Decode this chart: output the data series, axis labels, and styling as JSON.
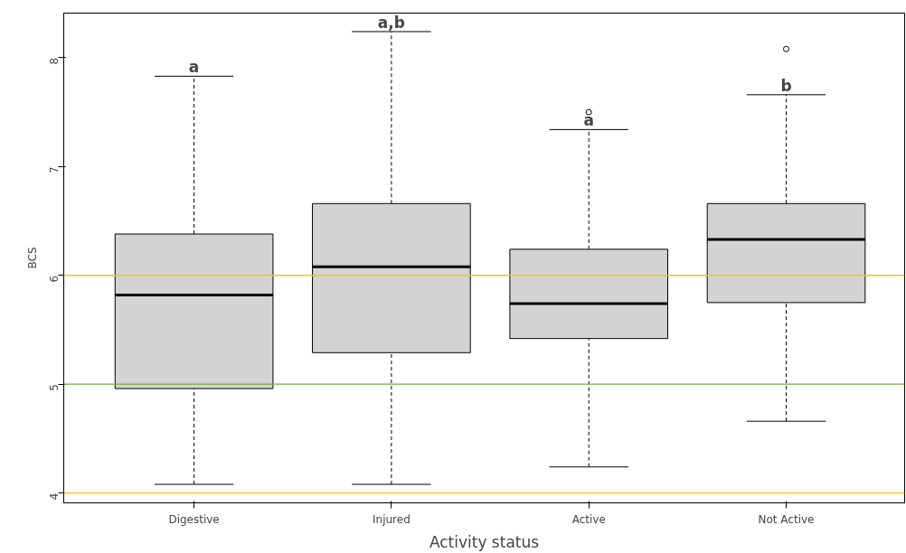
{
  "chart_data": {
    "type": "box",
    "xlabel": "Activity status",
    "ylabel": "BCS",
    "categories": [
      "Digestive",
      "Injured",
      "Active",
      "Not Active"
    ],
    "boxes": [
      {
        "low": 4.08,
        "q1": 4.96,
        "median": 5.82,
        "q3": 6.38,
        "high": 7.83
      },
      {
        "low": 4.08,
        "q1": 5.29,
        "median": 6.08,
        "q3": 6.66,
        "high": 8.24
      },
      {
        "low": 4.24,
        "q1": 5.42,
        "median": 5.74,
        "q3": 6.24,
        "high": 7.34,
        "outliers": [
          7.5
        ]
      },
      {
        "low": 4.66,
        "q1": 5.75,
        "median": 6.33,
        "q3": 6.66,
        "high": 7.66,
        "outliers": [
          8.08
        ]
      }
    ],
    "color": "#d3d3d3",
    "ylim": [
      3.91,
      8.41
    ],
    "yticks": [
      4,
      5,
      6,
      7,
      8
    ],
    "ref_lines": [
      {
        "axis": "y",
        "value": 6,
        "color": "#ffc000"
      },
      {
        "axis": "y",
        "value": 5,
        "color": "#70ad47"
      },
      {
        "axis": "y",
        "value": 4,
        "color": "#ffc000"
      }
    ],
    "annotations": [
      {
        "text": "a",
        "x": "Digestive",
        "y": 7.83
      },
      {
        "text": "a,b",
        "x": "Injured",
        "y": 8.24
      },
      {
        "text": "a",
        "x": "Active",
        "y": 7.34
      },
      {
        "text": "b",
        "x": "Not Active",
        "y": 7.66
      }
    ],
    "grid": false
  }
}
